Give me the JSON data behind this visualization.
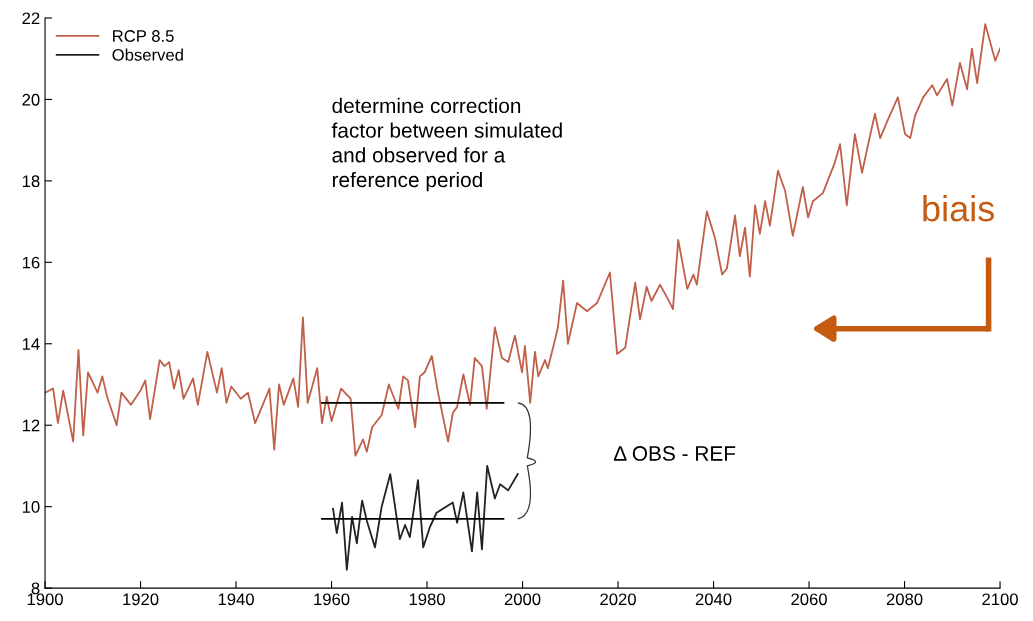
{
  "chart_data": {
    "type": "line",
    "xlim": [
      1900,
      2100
    ],
    "xticks": [
      1900,
      1920,
      1940,
      1960,
      1980,
      2000,
      2020,
      2040,
      2060,
      2080,
      2100
    ],
    "ylim": [
      8,
      22
    ],
    "yticks": [
      8,
      10,
      12,
      14,
      16,
      18,
      20,
      22
    ],
    "grid": false,
    "legend": "top left",
    "line_style": "solid",
    "marker": "none",
    "annotations": [
      "determine correction\nfactor between simulated\nand observed for a\nreference period",
      "Δ OBS - REF",
      "biais"
    ],
    "series": [
      {
        "name": "RCP 8.5",
        "color": "#c0604a",
        "x": [
          1900,
          1901.7,
          1902.7,
          1903.8,
          1905.9,
          1907,
          1908,
          1909,
          1911,
          1912,
          1913,
          1915,
          1916,
          1918,
          1920,
          1921,
          1922,
          1924,
          1925,
          1926,
          1927,
          1928,
          1929,
          1931,
          1932,
          1934,
          1936,
          1937,
          1938,
          1939,
          1941,
          1942.5,
          1944,
          1947,
          1948,
          1949,
          1950,
          1952,
          1953,
          1954,
          1955,
          1957,
          1958,
          1959,
          1960,
          1962,
          1964,
          1965,
          1966.6,
          1967.4,
          1968.5,
          1970.5,
          1972,
          1973,
          1974,
          1975,
          1976,
          1977.5,
          1978.5,
          1979.5,
          1981,
          1982.3,
          1984.4,
          1985.4,
          1986.3,
          1987.6,
          1989,
          1990,
          1991.5,
          1992.5,
          1994.2,
          1995.7,
          1997,
          1998.4,
          1999.9,
          2000.5,
          2001.6,
          2002.6,
          2003.3,
          2004.7,
          2005.3,
          2006.8,
          2007.4,
          2008.5,
          2009.5,
          2011.4,
          2013.5,
          2015.6,
          2018.3,
          2019.8,
          2021.5,
          2023.6,
          2024.6,
          2026,
          2027,
          2028.8,
          2030.2,
          2031.5,
          2032.6,
          2034.5,
          2035.8,
          2036.5,
          2038.6,
          2040.3,
          2041.8,
          2042.8,
          2044.5,
          2045.5,
          2046.6,
          2047.6,
          2048.7,
          2049.7,
          2050.8,
          2051.8,
          2053.5,
          2055,
          2056.6,
          2058.7,
          2059.8,
          2060.8,
          2062.9,
          2065.4,
          2066.5,
          2067.9,
          2069.6,
          2071.1,
          2072.1,
          2073.8,
          2074.9,
          2076.5,
          2078.6,
          2080.1,
          2081.2,
          2082.2,
          2083.9,
          2085.8,
          2086.8,
          2088.9,
          2090,
          2091.6,
          2093.1,
          2094.1,
          2095.2,
          2096.9,
          2099,
          2100
        ],
        "values": [
          12.8,
          12.9,
          12.05,
          12.85,
          11.6,
          13.85,
          11.75,
          13.3,
          12.8,
          13.2,
          12.7,
          12.0,
          12.8,
          12.5,
          12.85,
          13.1,
          12.15,
          13.6,
          13.45,
          13.55,
          12.9,
          13.35,
          12.65,
          13.15,
          12.5,
          13.8,
          12.8,
          13.4,
          12.55,
          12.95,
          12.65,
          12.8,
          12.05,
          12.9,
          11.4,
          13.0,
          12.5,
          13.15,
          12.45,
          14.65,
          12.55,
          13.4,
          12.05,
          12.7,
          12.1,
          12.9,
          12.65,
          11.25,
          11.65,
          11.35,
          11.95,
          12.25,
          13.0,
          12.7,
          12.4,
          13.2,
          13.1,
          11.95,
          13.2,
          13.3,
          13.7,
          12.8,
          11.6,
          12.3,
          12.45,
          13.25,
          12.5,
          13.65,
          13.45,
          12.4,
          14.4,
          13.65,
          13.55,
          14.2,
          13.3,
          13.95,
          12.55,
          13.8,
          13.2,
          13.6,
          13.4,
          14.1,
          14.4,
          15.55,
          14.0,
          15.0,
          14.8,
          15.0,
          15.75,
          13.75,
          13.9,
          15.5,
          14.6,
          15.4,
          15.05,
          15.45,
          15.15,
          14.85,
          16.55,
          15.35,
          15.7,
          15.45,
          17.25,
          16.6,
          15.7,
          15.85,
          17.15,
          16.15,
          16.85,
          15.65,
          17.4,
          16.7,
          17.5,
          16.9,
          18.25,
          17.75,
          16.65,
          17.85,
          17.1,
          17.5,
          17.7,
          18.45,
          18.9,
          17.4,
          19.15,
          18.2,
          18.75,
          19.65,
          19.05,
          19.5,
          20.05,
          19.15,
          19.05,
          19.6,
          20.05,
          20.35,
          20.1,
          20.5,
          19.85,
          20.9,
          20.25,
          21.25,
          20.4,
          21.85,
          20.95,
          21.25
        ]
      },
      {
        "name": "Observed",
        "color": "#222222",
        "x": [
          1960.3,
          1961.1,
          1962.2,
          1963.2,
          1964.3,
          1965.3,
          1966.4,
          1967.4,
          1969.1,
          1970.5,
          1972.3,
          1974.3,
          1975.4,
          1976.4,
          1978.1,
          1979.2,
          1980.6,
          1982,
          1985.4,
          1986.3,
          1987.6,
          1989.4,
          1990.5,
          1991.5,
          1992.6,
          1994.2,
          1995.3,
          1997,
          1999
        ],
        "values": [
          9.95,
          9.35,
          10.1,
          8.45,
          9.75,
          9.1,
          10.15,
          9.65,
          9.0,
          10.0,
          10.8,
          9.2,
          9.55,
          9.25,
          10.65,
          9.0,
          9.5,
          9.85,
          10.1,
          9.6,
          10.35,
          8.9,
          10.35,
          8.95,
          11.0,
          10.2,
          10.55,
          10.4,
          10.8
        ]
      },
      {
        "color": "#000000",
        "x": [
          1958,
          1996
        ],
        "values": [
          12.55,
          12.55
        ]
      },
      {
        "color": "#000000",
        "x": [
          1958,
          1996
        ],
        "values": [
          9.7,
          9.7
        ]
      }
    ]
  }
}
